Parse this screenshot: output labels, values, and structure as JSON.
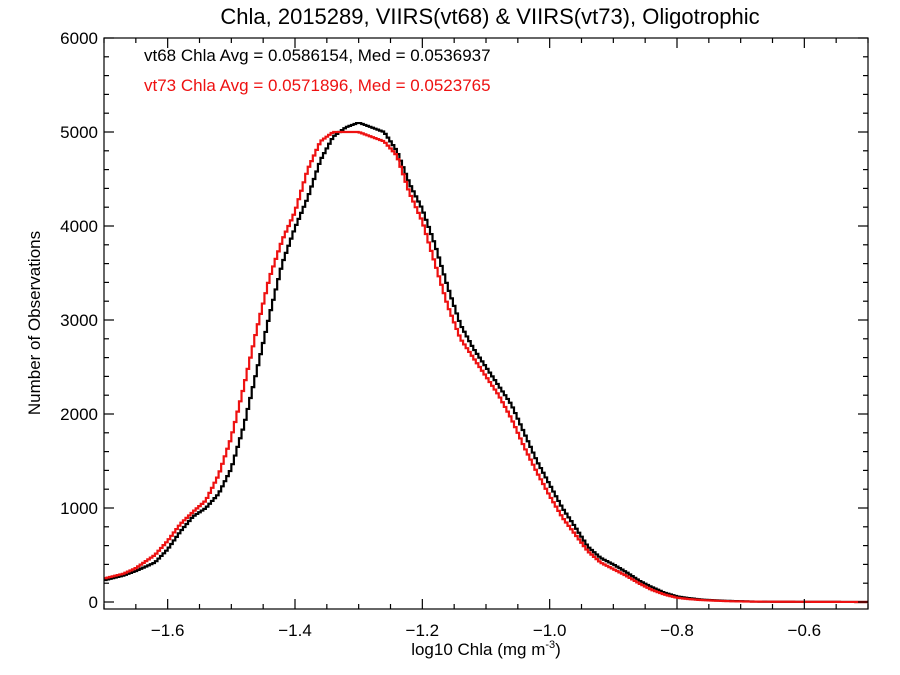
{
  "chart_data": {
    "type": "line",
    "title": "Chla, 2015289, VIIRS(vt68) & VIIRS(vt73), Oligotrophic",
    "xlabel": "log10 Chla (mg m",
    "xlabel_sup": "-3",
    "xlabel_end": ")",
    "ylabel": "Number of Observations",
    "xlim": [
      -1.7,
      -0.5
    ],
    "ylim": [
      0,
      6000
    ],
    "xticks": [
      -1.6,
      -1.4,
      -1.2,
      -1.0,
      -0.8,
      -0.6
    ],
    "xtick_labels": [
      "−1.6",
      "−1.4",
      "−1.2",
      "−1.0",
      "−0.8",
      "−0.6"
    ],
    "yticks": [
      0,
      1000,
      2000,
      3000,
      4000,
      5000,
      6000
    ],
    "ytick_labels": [
      "0",
      "1000",
      "2000",
      "3000",
      "4000",
      "5000",
      "6000"
    ],
    "grid": false,
    "annotations": [
      {
        "text": "vt68 Chla Avg = 0.0586154, Med = 0.0536937",
        "color": "#000000"
      },
      {
        "text": "vt73 Chla Avg = 0.0571896, Med = 0.0523765",
        "color": "#ee1111"
      }
    ],
    "series": [
      {
        "color": "#000000",
        "x": [
          -1.7,
          -1.67,
          -1.65,
          -1.62,
          -1.6,
          -1.58,
          -1.56,
          -1.54,
          -1.52,
          -1.5,
          -1.48,
          -1.46,
          -1.44,
          -1.42,
          -1.4,
          -1.38,
          -1.36,
          -1.34,
          -1.32,
          -1.3,
          -1.28,
          -1.26,
          -1.24,
          -1.22,
          -1.2,
          -1.18,
          -1.16,
          -1.14,
          -1.12,
          -1.1,
          -1.08,
          -1.06,
          -1.04,
          -1.02,
          -1.0,
          -0.98,
          -0.96,
          -0.94,
          -0.92,
          -0.9,
          -0.88,
          -0.86,
          -0.84,
          -0.82,
          -0.8,
          -0.78,
          -0.76,
          -0.74,
          -0.72,
          -0.7,
          -0.68,
          -0.65,
          -0.6,
          -0.55,
          -0.5
        ],
        "y": [
          230,
          280,
          330,
          420,
          560,
          750,
          910,
          1000,
          1150,
          1420,
          1880,
          2460,
          3050,
          3600,
          3980,
          4300,
          4700,
          4950,
          5050,
          5100,
          5050,
          5000,
          4800,
          4450,
          4180,
          3800,
          3350,
          2950,
          2700,
          2500,
          2300,
          2100,
          1800,
          1500,
          1250,
          1000,
          800,
          590,
          470,
          400,
          320,
          230,
          160,
          100,
          60,
          40,
          25,
          18,
          12,
          8,
          5,
          3,
          2,
          1,
          0
        ]
      },
      {
        "color": "#ee1111",
        "x": [
          -1.7,
          -1.67,
          -1.65,
          -1.62,
          -1.6,
          -1.58,
          -1.56,
          -1.54,
          -1.52,
          -1.5,
          -1.48,
          -1.46,
          -1.44,
          -1.42,
          -1.4,
          -1.38,
          -1.36,
          -1.34,
          -1.32,
          -1.3,
          -1.28,
          -1.26,
          -1.24,
          -1.22,
          -1.2,
          -1.18,
          -1.16,
          -1.14,
          -1.12,
          -1.1,
          -1.08,
          -1.06,
          -1.04,
          -1.02,
          -1.0,
          -0.98,
          -0.96,
          -0.94,
          -0.92,
          -0.9,
          -0.88,
          -0.86,
          -0.84,
          -0.82,
          -0.8,
          -0.78,
          -0.76,
          -0.74,
          -0.72,
          -0.7,
          -0.68,
          -0.65,
          -0.6,
          -0.55,
          -0.5
        ],
        "y": [
          250,
          300,
          360,
          500,
          650,
          830,
          960,
          1080,
          1350,
          1750,
          2300,
          2900,
          3450,
          3850,
          4150,
          4600,
          4900,
          5000,
          5000,
          5000,
          4950,
          4900,
          4750,
          4350,
          4050,
          3600,
          3150,
          2800,
          2600,
          2400,
          2200,
          1950,
          1650,
          1380,
          1130,
          900,
          720,
          540,
          420,
          350,
          280,
          200,
          130,
          80,
          45,
          30,
          20,
          14,
          9,
          6,
          4,
          3,
          2,
          1,
          0
        ]
      }
    ]
  }
}
